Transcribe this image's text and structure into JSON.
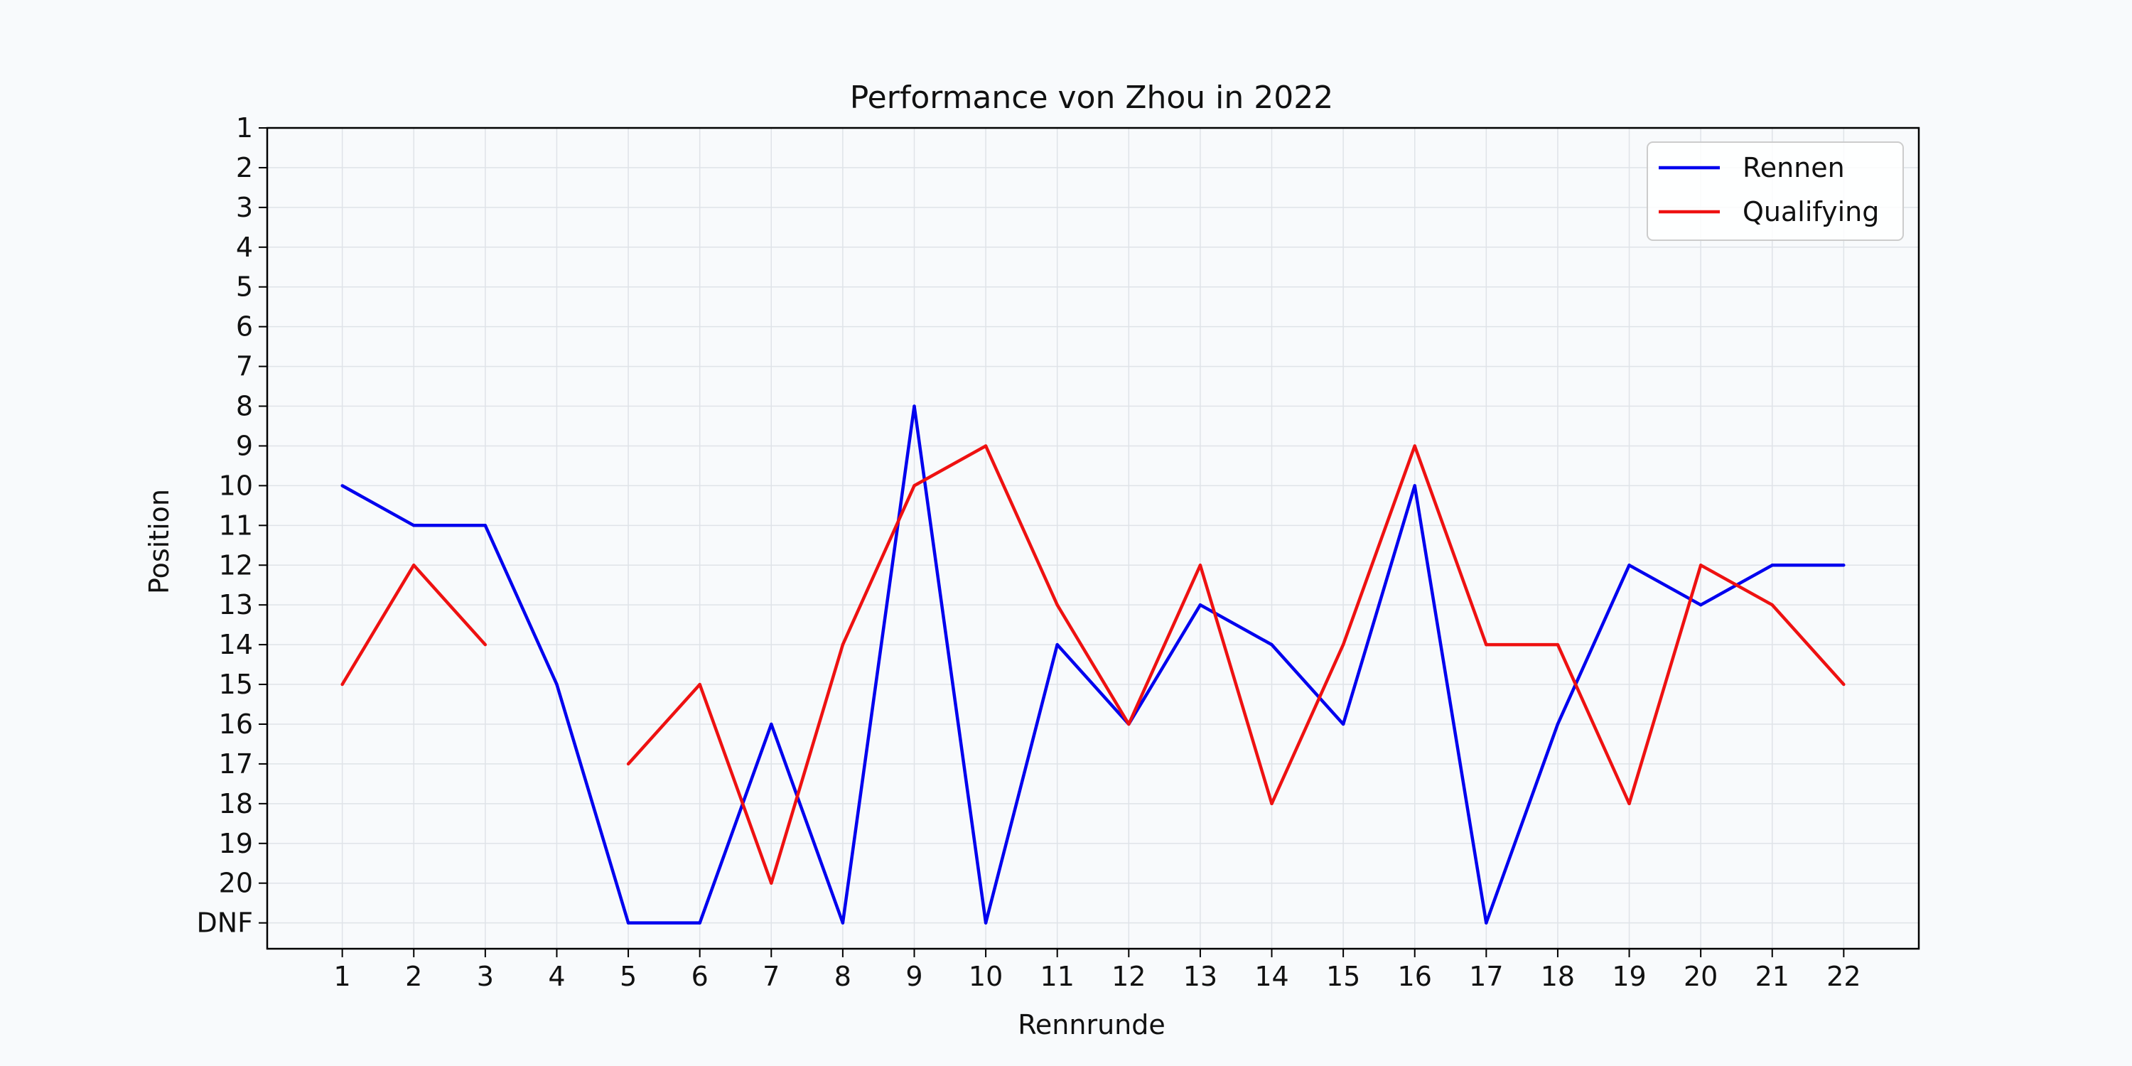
{
  "chart_data": {
    "type": "line",
    "title": "Performance von Zhou in 2022",
    "xlabel": "Rennrunde",
    "ylabel": "Position",
    "x": [
      1,
      2,
      3,
      4,
      5,
      6,
      7,
      8,
      9,
      10,
      11,
      12,
      13,
      14,
      15,
      16,
      17,
      18,
      19,
      20,
      21,
      22
    ],
    "y_ticks": [
      {
        "value": 1,
        "label": "1"
      },
      {
        "value": 2,
        "label": "2"
      },
      {
        "value": 3,
        "label": "3"
      },
      {
        "value": 4,
        "label": "4"
      },
      {
        "value": 5,
        "label": "5"
      },
      {
        "value": 6,
        "label": "6"
      },
      {
        "value": 7,
        "label": "7"
      },
      {
        "value": 8,
        "label": "8"
      },
      {
        "value": 9,
        "label": "9"
      },
      {
        "value": 10,
        "label": "10"
      },
      {
        "value": 11,
        "label": "11"
      },
      {
        "value": 12,
        "label": "12"
      },
      {
        "value": 13,
        "label": "13"
      },
      {
        "value": 14,
        "label": "14"
      },
      {
        "value": 15,
        "label": "15"
      },
      {
        "value": 16,
        "label": "16"
      },
      {
        "value": 17,
        "label": "17"
      },
      {
        "value": 18,
        "label": "18"
      },
      {
        "value": 19,
        "label": "19"
      },
      {
        "value": 20,
        "label": "20"
      },
      {
        "value": 21,
        "label": "DNF"
      }
    ],
    "xlim": [
      -0.05,
      23.05
    ],
    "ylim": [
      21.65,
      1
    ],
    "y_inverted": true,
    "grid": true,
    "legend_position": "top-right",
    "series": [
      {
        "name": "Rennen",
        "color": "#0000ee",
        "values": [
          10,
          11,
          11,
          15,
          21,
          21,
          16,
          21,
          8,
          21,
          14,
          16,
          13,
          14,
          16,
          10,
          21,
          16,
          12,
          13,
          12,
          12
        ]
      },
      {
        "name": "Qualifying",
        "color": "#ee1111",
        "values": [
          15,
          12,
          14,
          null,
          17,
          15,
          20,
          14,
          10,
          9,
          13,
          16,
          12,
          18,
          14,
          9,
          14,
          14,
          18,
          12,
          13,
          15
        ]
      }
    ]
  }
}
